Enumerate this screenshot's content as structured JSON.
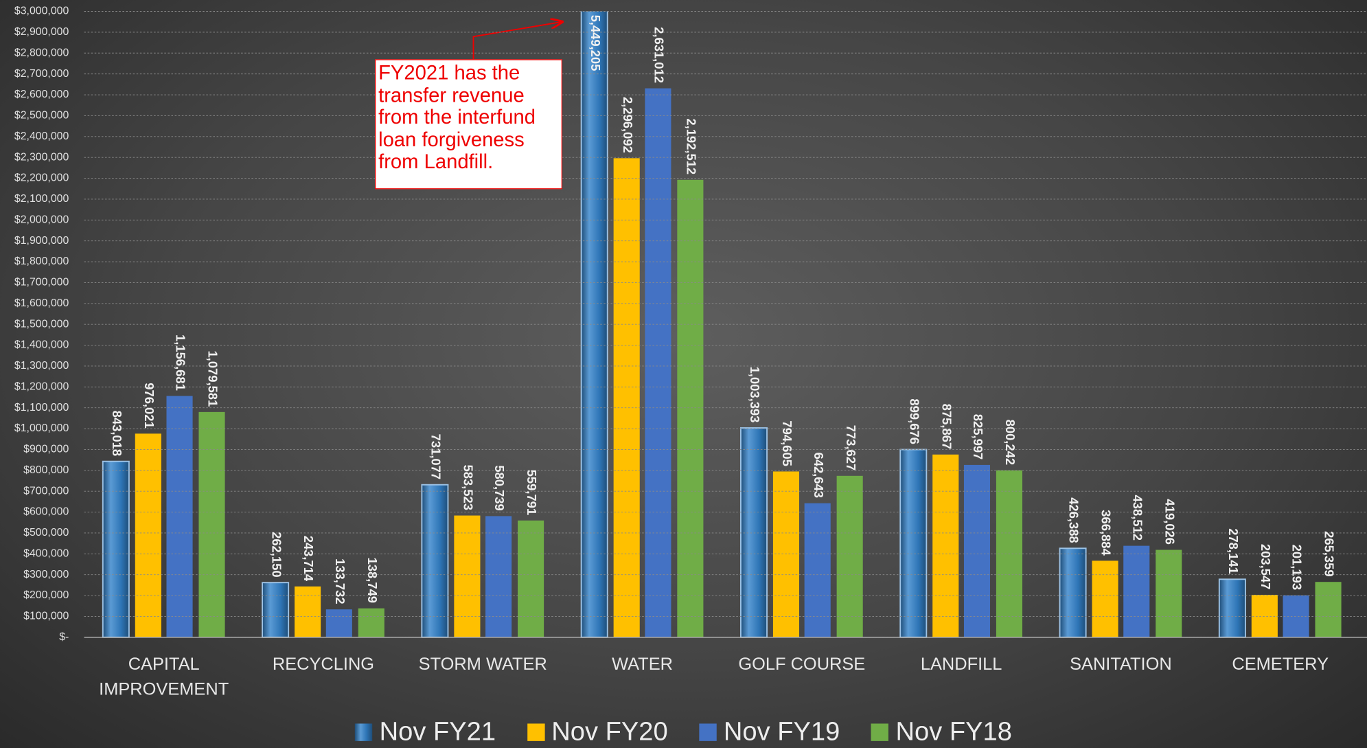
{
  "chart_data": {
    "type": "bar",
    "categories": [
      "CAPITAL IMPROVEMENT",
      "RECYCLING",
      "STORM WATER",
      "WATER",
      "GOLF COURSE",
      "LANDFILL",
      "SANITATION",
      "CEMETERY"
    ],
    "series": [
      {
        "name": "Nov FY21",
        "color": "#2e75b6",
        "values": [
          843018,
          262150,
          731077,
          5449205,
          1003393,
          899676,
          426388,
          278141
        ],
        "value_labels": [
          "843,018",
          "262,150",
          "731,077",
          "5,449,205",
          "1,003,393",
          "899,676",
          "426,388",
          "278,141"
        ]
      },
      {
        "name": "Nov FY20",
        "color": "#ffc000",
        "values": [
          976021,
          243714,
          583523,
          2296092,
          794605,
          875867,
          366884,
          203547
        ],
        "value_labels": [
          "976,021",
          "243,714",
          "583,523",
          "2,296,092",
          "794,605",
          "875,867",
          "366,884",
          "203,547"
        ]
      },
      {
        "name": "Nov FY19",
        "color": "#4472c4",
        "values": [
          1156681,
          133732,
          580739,
          2631012,
          642643,
          825997,
          438512,
          201193
        ],
        "value_labels": [
          "1,156,681",
          "133,732",
          "580,739",
          "2,631,012",
          "642,643",
          "825,997",
          "438,512",
          "201,193"
        ]
      },
      {
        "name": "Nov FY18",
        "color": "#70ad47",
        "values": [
          1079581,
          138749,
          559791,
          2192512,
          773627,
          800242,
          419026,
          265359
        ],
        "value_labels": [
          "1,079,581",
          "138,749",
          "559,791",
          "2,192,512",
          "773,627",
          "800,242",
          "419,026",
          "265,359"
        ]
      }
    ],
    "ylim": [
      0,
      3000000
    ],
    "yticks": [
      {
        "value": 0,
        "label": "$-"
      },
      {
        "value": 100000,
        "label": "$100,000"
      },
      {
        "value": 200000,
        "label": "$200,000"
      },
      {
        "value": 300000,
        "label": "$300,000"
      },
      {
        "value": 400000,
        "label": "$400,000"
      },
      {
        "value": 500000,
        "label": "$500,000"
      },
      {
        "value": 600000,
        "label": "$600,000"
      },
      {
        "value": 700000,
        "label": "$700,000"
      },
      {
        "value": 800000,
        "label": "$800,000"
      },
      {
        "value": 900000,
        "label": "$900,000"
      },
      {
        "value": 1000000,
        "label": "$1,000,000"
      },
      {
        "value": 1100000,
        "label": "$1,100,000"
      },
      {
        "value": 1200000,
        "label": "$1,200,000"
      },
      {
        "value": 1300000,
        "label": "$1,300,000"
      },
      {
        "value": 1400000,
        "label": "$1,400,000"
      },
      {
        "value": 1500000,
        "label": "$1,500,000"
      },
      {
        "value": 1600000,
        "label": "$1,600,000"
      },
      {
        "value": 1700000,
        "label": "$1,700,000"
      },
      {
        "value": 1800000,
        "label": "$1,800,000"
      },
      {
        "value": 1900000,
        "label": "$1,900,000"
      },
      {
        "value": 2000000,
        "label": "$2,000,000"
      },
      {
        "value": 2100000,
        "label": "$2,100,000"
      },
      {
        "value": 2200000,
        "label": "$2,200,000"
      },
      {
        "value": 2300000,
        "label": "$2,300,000"
      },
      {
        "value": 2400000,
        "label": "$2,400,000"
      },
      {
        "value": 2500000,
        "label": "$2,500,000"
      },
      {
        "value": 2600000,
        "label": "$2,600,000"
      },
      {
        "value": 2700000,
        "label": "$2,700,000"
      },
      {
        "value": 2800000,
        "label": "$2,800,000"
      },
      {
        "value": 2900000,
        "label": "$2,900,000"
      },
      {
        "value": 3000000,
        "label": "$3,000,000"
      }
    ],
    "grid": true,
    "legend": "bottom",
    "annotation": "FY2021 has the transfer revenue from the interfund loan forgiveness from Landfill."
  }
}
